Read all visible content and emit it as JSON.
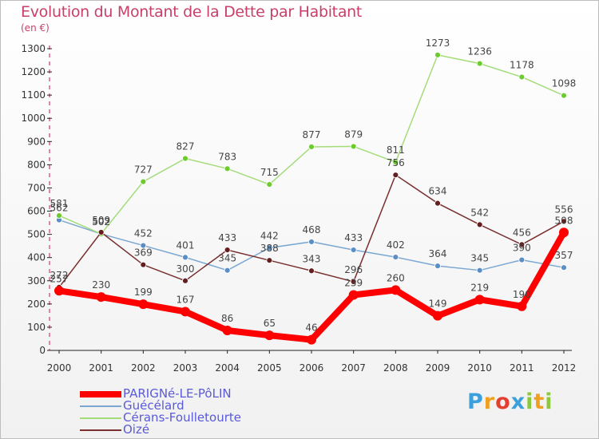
{
  "title": "Evolution du Montant de la Dette par Habitant",
  "subtitle": "(en €)",
  "logo": {
    "text": "Proxiti",
    "letters": [
      {
        "ch": "P",
        "color": "#3ca0dc"
      },
      {
        "ch": "r",
        "color": "#f0a020"
      },
      {
        "ch": "o",
        "color": "#e24030"
      },
      {
        "ch": "x",
        "color": "#3ca0dc"
      },
      {
        "ch": "i",
        "color": "#8cc83c"
      },
      {
        "ch": "t",
        "color": "#f0a020"
      },
      {
        "ch": "i",
        "color": "#8cc83c"
      }
    ]
  },
  "chart_data": {
    "type": "line",
    "x": [
      "2000",
      "2001",
      "2002",
      "2003",
      "2004",
      "2005",
      "2006",
      "2007",
      "2008",
      "2009",
      "2010",
      "2011",
      "2012"
    ],
    "ylim": [
      0,
      1300
    ],
    "yticks": [
      0,
      100,
      200,
      300,
      400,
      500,
      600,
      700,
      800,
      900,
      1000,
      1100,
      1200,
      1300
    ],
    "grid": false,
    "legend_position": "bottom-left",
    "series": [
      {
        "name": "PARIGNé-LE-PôLIN",
        "color": "#ff0000",
        "marker": "#ff0000",
        "values": [
          257,
          230,
          199,
          167,
          86,
          65,
          46,
          239,
          260,
          149,
          219,
          190,
          508
        ]
      },
      {
        "name": "Guécélard",
        "color": "#7aa7d2",
        "marker": "#5b8ec4",
        "values": [
          562,
          502,
          452,
          401,
          345,
          442,
          468,
          433,
          402,
          364,
          345,
          390,
          357
        ]
      },
      {
        "name": "Cérans-Foulletourte",
        "color": "#a4dc7a",
        "marker": "#6ccc2e",
        "values": [
          581,
          502,
          727,
          827,
          783,
          715,
          877,
          879,
          811,
          1273,
          1236,
          1178,
          1098
        ]
      },
      {
        "name": "Oizé",
        "color": "#7a3030",
        "marker": "#641e1e",
        "values": [
          272,
          509,
          369,
          300,
          433,
          388,
          343,
          296,
          756,
          634,
          542,
          456,
          556
        ]
      }
    ]
  }
}
